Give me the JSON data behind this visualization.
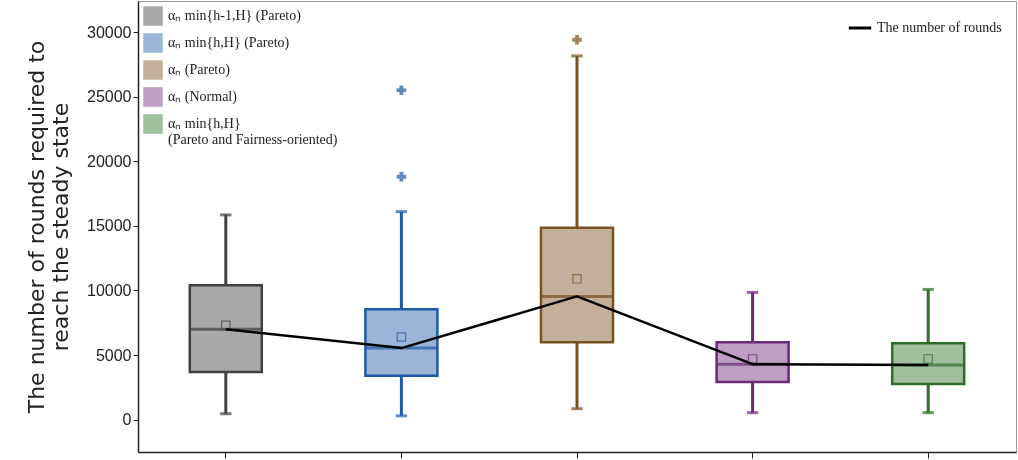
{
  "chart_data": {
    "type": "box",
    "ylabel": "The number of rounds  required to\nreach the steady state",
    "categories": [
      null,
      null,
      null,
      null,
      null
    ],
    "ylim": [
      -2500,
      32400
    ],
    "yticks": [
      0,
      5000,
      10000,
      15000,
      20000,
      25000,
      30000
    ],
    "grid": false,
    "legend": "top left",
    "tick_labels": "y",
    "series": [
      {
        "name": "αₙ min{h-1,H} (Pareto)",
        "color": "#404040",
        "boxes": [
          {
            "low": 460,
            "q1": 3700,
            "median": 7000,
            "q3": 10400,
            "high": 15850,
            "mean": 7300
          },
          null,
          null,
          null,
          null
        ]
      },
      {
        "name": "αₙ min{h,H} (Pareto)",
        "color": "#1f5aa6",
        "boxes": [
          null,
          {
            "low": 300,
            "q1": 3400,
            "median": 5540,
            "q3": 8540,
            "high": 16100,
            "mean": 6400,
            "outliers": [
              18800,
              25500
            ]
          },
          null,
          null,
          null
        ]
      },
      {
        "name": "αₙ (Pareto)",
        "color": "#7a5020",
        "boxes": [
          null,
          null,
          {
            "low": 850,
            "q1": 6000,
            "median": 9540,
            "q3": 14850,
            "high": 28150,
            "mean": 10900,
            "outliers": [
              29400
            ]
          },
          null,
          null
        ]
      },
      {
        "name": "αₙ (Normal)",
        "color": "#6a2a7a",
        "boxes": [
          null,
          null,
          null,
          {
            "low": 540,
            "q1": 2920,
            "median": 4300,
            "q3": 6000,
            "high": 9850,
            "mean": 4700
          },
          null
        ]
      },
      {
        "name": "αₙ min{h,H}\n(Pareto and Fairness-oriented)",
        "color": "#2f6e2a",
        "boxes": [
          null,
          null,
          null,
          null,
          {
            "low": 540,
            "q1": 2770,
            "median": 4230,
            "q3": 5920,
            "high": 10080,
            "mean": 4700
          }
        ]
      },
      {
        "name": "The number of rounds",
        "type": "line",
        "color": "#000000",
        "values": [
          7000,
          5540,
          9540,
          4300,
          4230
        ]
      }
    ]
  }
}
